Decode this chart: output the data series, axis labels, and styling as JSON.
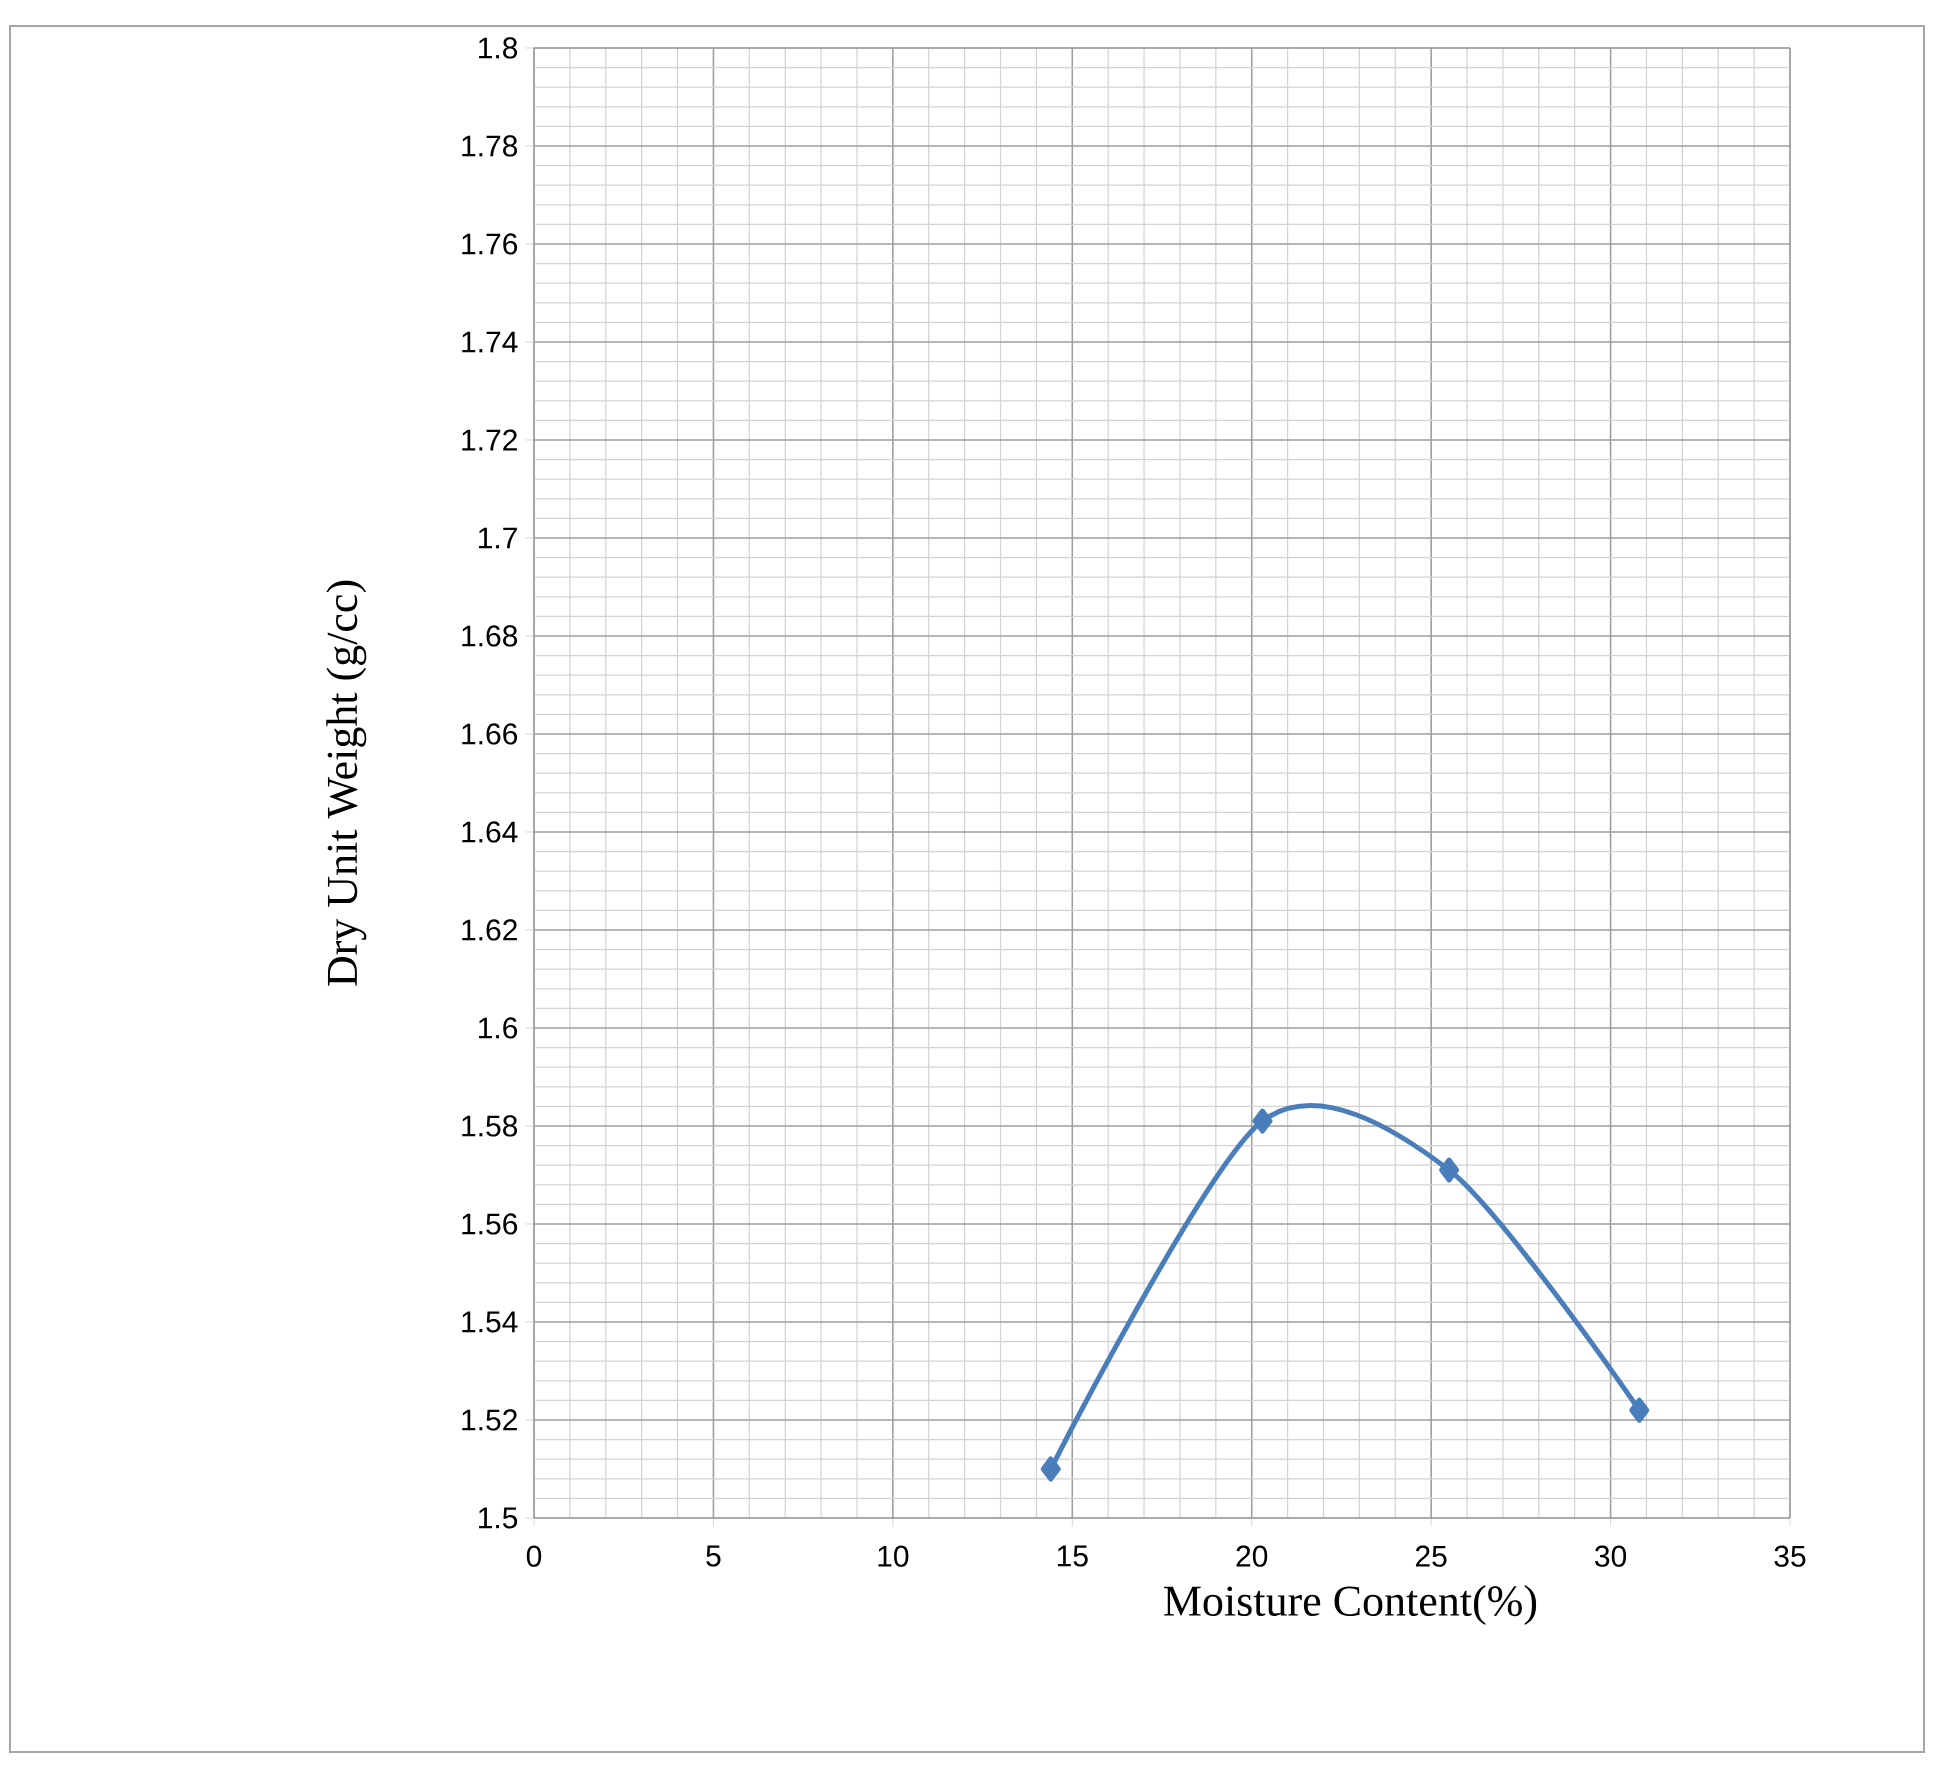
{
  "chart_data": {
    "type": "line",
    "xlabel": "Moisture Content(%)",
    "ylabel": "Dry Unit Weight (g/cc)",
    "x": [
      14.4,
      20.3,
      25.5,
      30.8
    ],
    "series": [
      {
        "color": "#4a7ebb",
        "values": [
          1.51,
          1.581,
          1.571,
          1.522
        ]
      }
    ],
    "xlim": [
      0,
      35
    ],
    "xticks": [
      0,
      5,
      10,
      15,
      20,
      25,
      30,
      35
    ],
    "ylim": [
      1.5,
      1.8
    ],
    "yticks": [
      1.5,
      1.52,
      1.54,
      1.56,
      1.58,
      1.6,
      1.62,
      1.64,
      1.66,
      1.68,
      1.7,
      1.72,
      1.74,
      1.76,
      1.78,
      1.8
    ],
    "grid": true,
    "marker": "diamond",
    "line_style": "solid"
  }
}
